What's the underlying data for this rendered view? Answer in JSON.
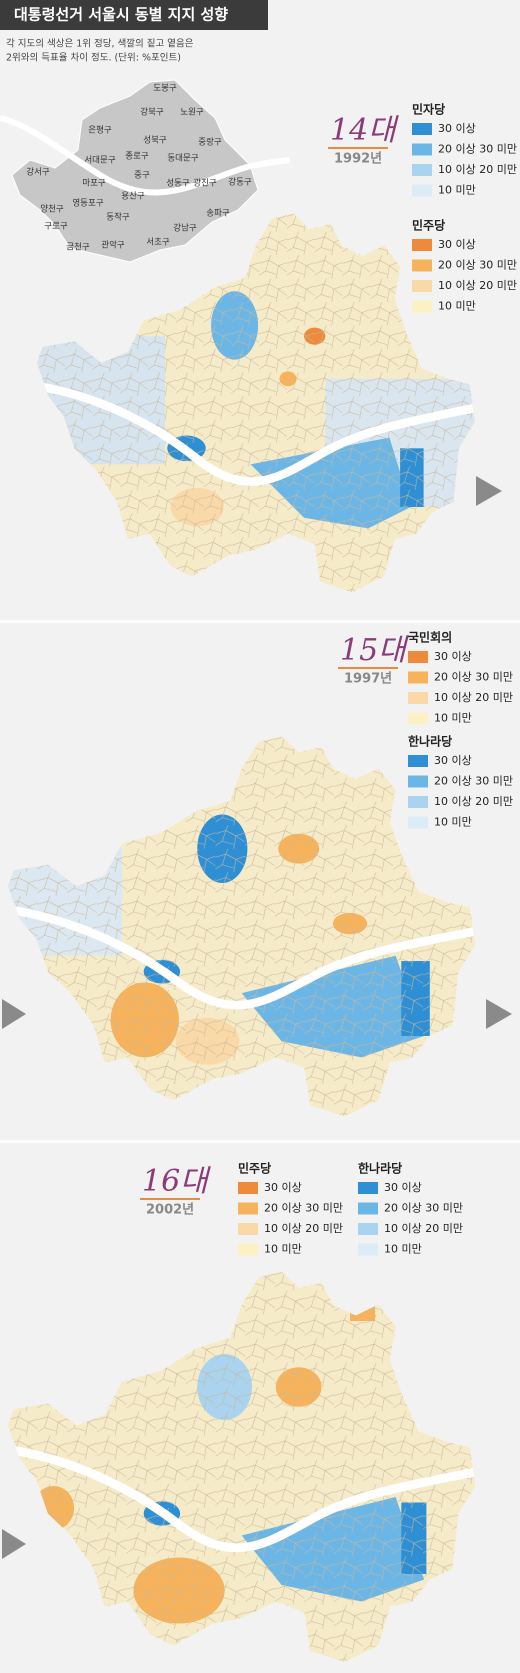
{
  "header": {
    "title": "대통령선거 서울시 동별 지지 성향",
    "subtitle": [
      "각 지도의 색상은 1위 정당, 색깔의 짙고 옅음은",
      "2위와의 득표율 차이 정도. (단위: %포인트)"
    ]
  },
  "key_map": {
    "districts": [
      "도봉구",
      "강북구",
      "노원구",
      "은평구",
      "성북구",
      "중랑구",
      "서대문구",
      "종로구",
      "동대문구",
      "강서구",
      "마포구",
      "중구",
      "성동구",
      "광진구",
      "강동구",
      "용산구",
      "양천구",
      "영등포구",
      "동작구",
      "송파구",
      "구로구",
      "강남구",
      "금천구",
      "관악구",
      "서초구"
    ]
  },
  "panels": [
    {
      "number": "14대",
      "year": "1992년",
      "legends": [
        {
          "party": "민자당",
          "items": [
            {
              "label": "30 이상",
              "color": "#2e8fd4"
            },
            {
              "label": "20 이상 30 미만",
              "color": "#6cb6e6"
            },
            {
              "label": "10 이상 20 미만",
              "color": "#a9d3ef"
            },
            {
              "label": "10 미만",
              "color": "#dcecf6"
            }
          ]
        },
        {
          "party": "민주당",
          "items": [
            {
              "label": "30 이상",
              "color": "#ee8a3c"
            },
            {
              "label": "20 이상 30 미만",
              "color": "#f6b35b"
            },
            {
              "label": "10 이상 20 미만",
              "color": "#f9d9a8"
            },
            {
              "label": "10 미만",
              "color": "#fbf1c4"
            }
          ]
        }
      ]
    },
    {
      "number": "15대",
      "year": "1997년",
      "legends": [
        {
          "party": "국민회의",
          "items": [
            {
              "label": "30 이상",
              "color": "#ee8a3c"
            },
            {
              "label": "20 이상 30 미만",
              "color": "#f6b35b"
            },
            {
              "label": "10 이상 20 미만",
              "color": "#f9d9a8"
            },
            {
              "label": "10 미만",
              "color": "#fbf1c4"
            }
          ]
        },
        {
          "party": "한나라당",
          "items": [
            {
              "label": "30 이상",
              "color": "#2e8fd4"
            },
            {
              "label": "20 이상 30 미만",
              "color": "#6cb6e6"
            },
            {
              "label": "10 이상 20 미만",
              "color": "#a9d3ef"
            },
            {
              "label": "10 미만",
              "color": "#dcecf6"
            }
          ]
        }
      ]
    },
    {
      "number": "16대",
      "year": "2002년",
      "legends": [
        {
          "party": "민주당",
          "items": [
            {
              "label": "30 이상",
              "color": "#ee8a3c"
            },
            {
              "label": "20 이상 30 미만",
              "color": "#f6b35b"
            },
            {
              "label": "10 이상 20 미만",
              "color": "#f9d9a8"
            },
            {
              "label": "10 미만",
              "color": "#fbf1c4"
            }
          ]
        },
        {
          "party": "한나라당",
          "items": [
            {
              "label": "30 이상",
              "color": "#2e8fd4"
            },
            {
              "label": "20 이상 30 미만",
              "color": "#6cb6e6"
            },
            {
              "label": "10 이상 20 미만",
              "color": "#a9d3ef"
            },
            {
              "label": "10 미만",
              "color": "#dcecf6"
            }
          ]
        }
      ]
    }
  ]
}
